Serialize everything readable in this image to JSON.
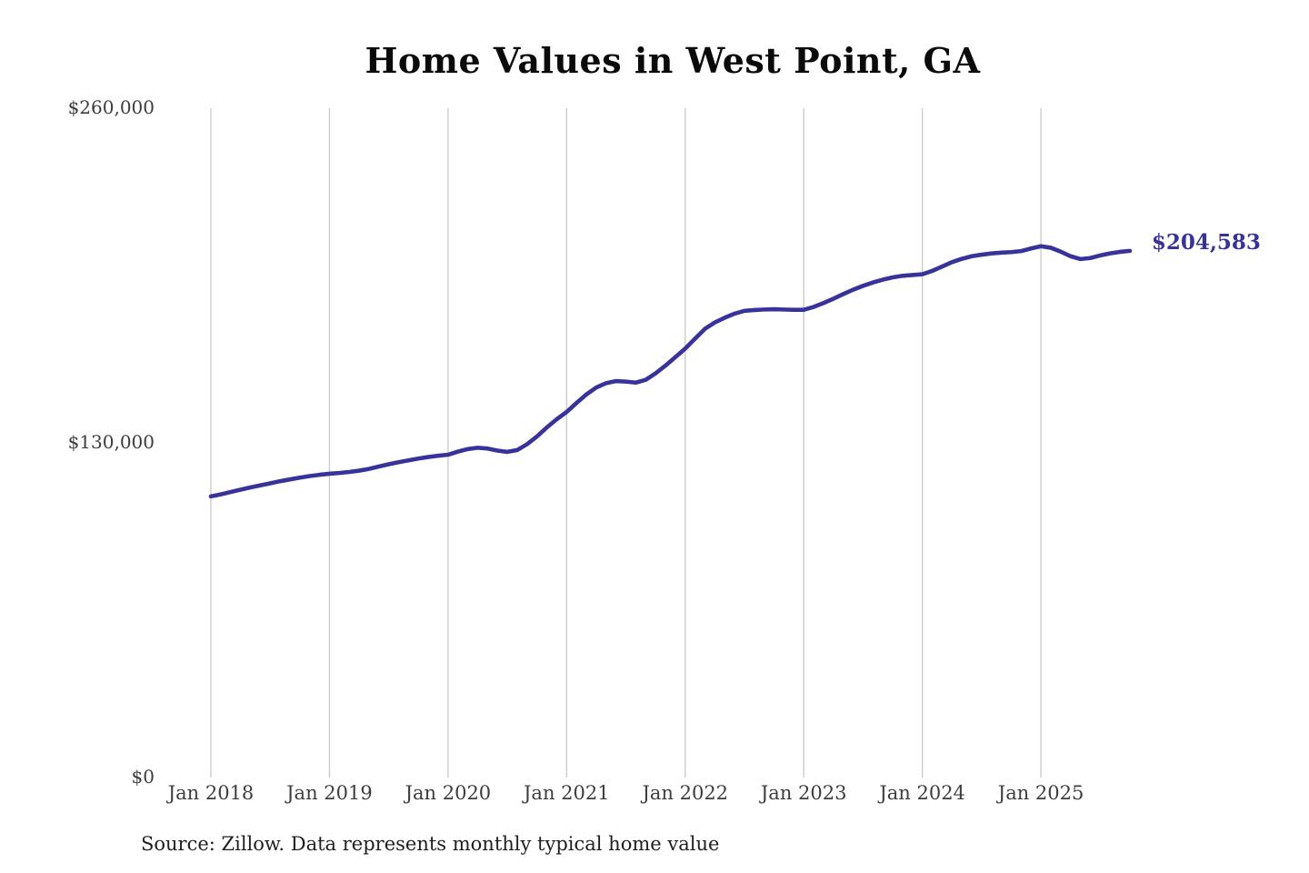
{
  "title": "Home Values in West Point, GA",
  "end_label": "$204,583",
  "source": "Source: Zillow. Data represents monthly typical home value",
  "colors": {
    "line": "#38329b",
    "grid": "#c9c9c9",
    "tick_text": "#3d3d3d",
    "title_text": "#0a0a0a",
    "source_text": "#1f1f1f"
  },
  "y_axis": {
    "ticks": [
      {
        "label": "$260,000",
        "value": 260000
      },
      {
        "label": "$130,000",
        "value": 130000
      },
      {
        "label": "$0",
        "value": 0
      }
    ],
    "min": 0,
    "max": 260000
  },
  "x_axis": {
    "ticks": [
      "Jan 2018",
      "Jan 2019",
      "Jan 2020",
      "Jan 2021",
      "Jan 2022",
      "Jan 2023",
      "Jan 2024",
      "Jan 2025"
    ]
  },
  "chart_data": {
    "type": "line",
    "title": "Home Values in West Point, GA",
    "series_name": "Monthly typical home value (USD)",
    "x_start": "2018-01",
    "x_end": "2025-10",
    "x_frequency": "monthly",
    "ylim": [
      0,
      260000
    ],
    "grid": "vertical-only",
    "legend": "none",
    "annotation_last_value": 204583,
    "values": [
      109200,
      110000,
      110900,
      111800,
      112700,
      113500,
      114300,
      115100,
      115800,
      116500,
      117100,
      117600,
      118000,
      118300,
      118700,
      119200,
      119900,
      120800,
      121700,
      122500,
      123200,
      123900,
      124500,
      125000,
      125400,
      126600,
      127600,
      128100,
      127800,
      127000,
      126500,
      127200,
      129500,
      132500,
      136000,
      139200,
      142000,
      145500,
      148800,
      151500,
      153200,
      154000,
      153800,
      153400,
      154500,
      157000,
      160000,
      163300,
      166600,
      170500,
      174300,
      176800,
      178600,
      180200,
      181300,
      181600,
      181800,
      181900,
      181800,
      181700,
      181700,
      182800,
      184300,
      186000,
      187800,
      189500,
      191000,
      192300,
      193400,
      194300,
      194900,
      195200,
      195500,
      196800,
      198500,
      200200,
      201500,
      202500,
      203100,
      203600,
      203900,
      204100,
      204500,
      205500,
      206400,
      205800,
      204300,
      202500,
      201400,
      201800,
      202800,
      203600,
      204200,
      204583
    ]
  }
}
